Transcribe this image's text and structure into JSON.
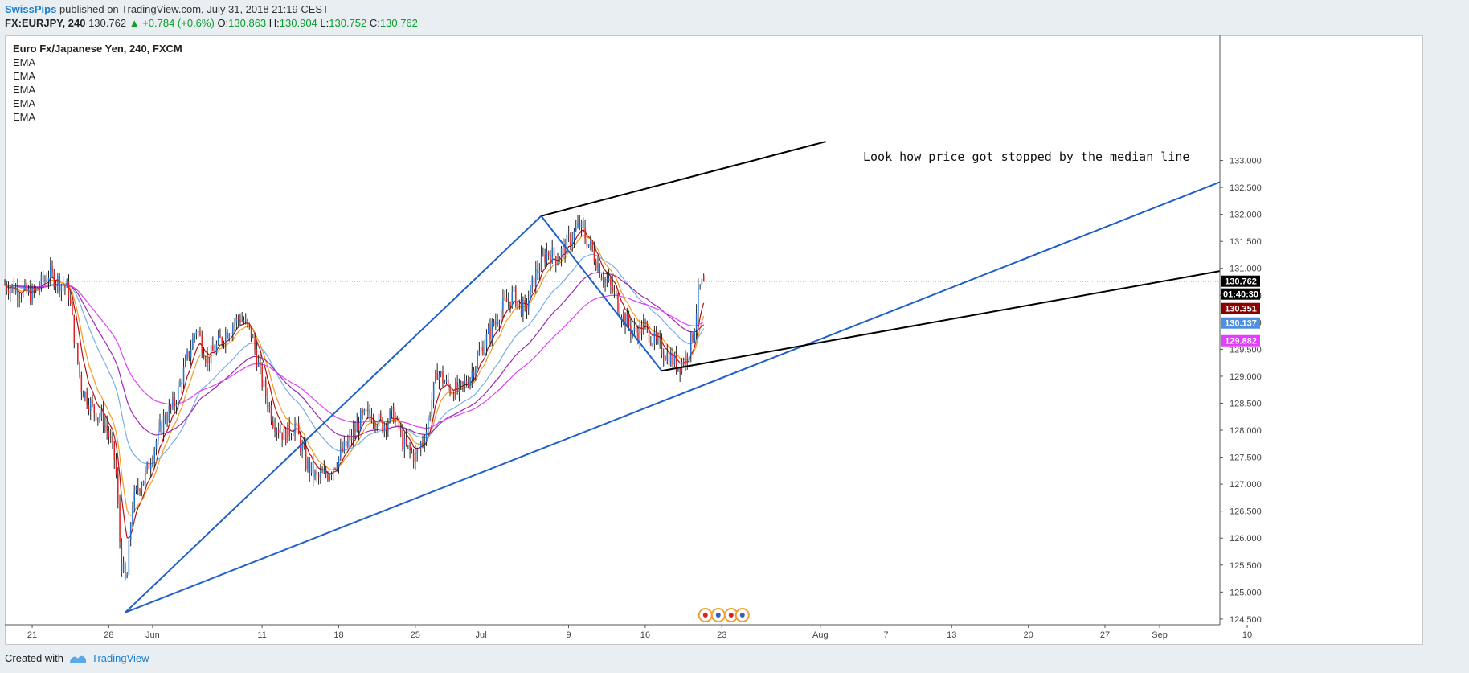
{
  "header": {
    "author": "SwissPips",
    "published": "published on TradingView.com, July 31, 2018 21:19 CEST",
    "symbol": "FX:EURJPY, 240",
    "last": "130.762",
    "change": "+0.784 (+0.6%)",
    "o_label": "O:",
    "o_value": "130.863",
    "h_label": "H:",
    "h_value": "130.904",
    "l_label": "L:",
    "l_value": "130.752",
    "c_label": "C:",
    "c_value": "130.762"
  },
  "legend": {
    "title": "Euro Fx/Japanese Yen, 240, FXCM",
    "indicators": [
      "EMA",
      "EMA",
      "EMA",
      "EMA",
      "EMA"
    ]
  },
  "annotation": "Look how price got stopped by the median line",
  "footer": {
    "created_with": "Created with",
    "brand": "TradingView"
  },
  "colors": {
    "up": "#1e6fd0",
    "down": "#e02020",
    "ema_red": "#b0121b",
    "ema_orange": "#f59a23",
    "ema_lightblue": "#7aaee8",
    "ema_purple": "#9c27b0",
    "ema_magenta": "#e040fb",
    "pitchfork_median": "#1f5fc9",
    "pitchfork_tines": "#000000"
  },
  "chart_data": {
    "type": "candlestick",
    "symbol": "EURJPY",
    "timeframe": "240",
    "ylim": [
      124.2,
      133.5
    ],
    "y_ticks": [
      "133.000",
      "132.500",
      "132.000",
      "131.500",
      "131.000",
      "130.500",
      "130.000",
      "129.500",
      "129.000",
      "128.500",
      "128.000",
      "127.500",
      "127.000",
      "126.500",
      "126.000",
      "125.500",
      "125.000",
      "124.500"
    ],
    "x_ticks": [
      "21",
      "28",
      "Jun",
      "11",
      "18",
      "25",
      "Jul",
      "9",
      "16",
      "23",
      "Aug",
      "7",
      "13",
      "20",
      "27",
      "Sep",
      "10"
    ],
    "x_tick_days": [
      0,
      7,
      11,
      21,
      28,
      35,
      41,
      49,
      56,
      63,
      72,
      78,
      84,
      91,
      98,
      103,
      111
    ],
    "x_range_days": [
      -2.5,
      108.5
    ],
    "last_price": 130.762,
    "price_tags": [
      {
        "value": "130.762",
        "color": "#000000"
      },
      {
        "value": "01:40:30",
        "color": "#000000"
      },
      {
        "value": "130.351",
        "color": "#8b0000"
      },
      {
        "value": "130.137",
        "color": "#4a8fe0"
      },
      {
        "value": "129.882",
        "color": "#e040fb"
      }
    ],
    "closes": [
      {
        "d": -2.5,
        "c": 130.7
      },
      {
        "d": 0,
        "c": 130.5
      },
      {
        "d": 1.5,
        "c": 130.9
      },
      {
        "d": 2.5,
        "c": 130.75
      },
      {
        "d": 3.3,
        "c": 130.6
      },
      {
        "d": 4,
        "c": 129.5
      },
      {
        "d": 4.5,
        "c": 128.8
      },
      {
        "d": 5.5,
        "c": 128.4
      },
      {
        "d": 6.5,
        "c": 128.2
      },
      {
        "d": 7,
        "c": 127.9
      },
      {
        "d": 7.6,
        "c": 127.4
      },
      {
        "d": 8.1,
        "c": 125.6
      },
      {
        "d": 8.6,
        "c": 125.1
      },
      {
        "d": 9.1,
        "c": 126.6
      },
      {
        "d": 9.8,
        "c": 127.0
      },
      {
        "d": 10.4,
        "c": 127.2
      },
      {
        "d": 11,
        "c": 127.6
      },
      {
        "d": 12,
        "c": 128.2
      },
      {
        "d": 13,
        "c": 128.5
      },
      {
        "d": 14,
        "c": 129.2
      },
      {
        "d": 15,
        "c": 129.9
      },
      {
        "d": 16,
        "c": 129.3
      },
      {
        "d": 17,
        "c": 129.6
      },
      {
        "d": 18,
        "c": 129.9
      },
      {
        "d": 19,
        "c": 130.1
      },
      {
        "d": 20,
        "c": 129.8
      },
      {
        "d": 21,
        "c": 128.9
      },
      {
        "d": 22,
        "c": 128.2
      },
      {
        "d": 23,
        "c": 127.9
      },
      {
        "d": 24,
        "c": 128.1
      },
      {
        "d": 25,
        "c": 127.4
      },
      {
        "d": 26,
        "c": 127.1
      },
      {
        "d": 27,
        "c": 127.2
      },
      {
        "d": 28,
        "c": 127.5
      },
      {
        "d": 29,
        "c": 127.8
      },
      {
        "d": 30,
        "c": 128.2
      },
      {
        "d": 31,
        "c": 128.3
      },
      {
        "d": 32,
        "c": 128.1
      },
      {
        "d": 33,
        "c": 128.3
      },
      {
        "d": 34,
        "c": 127.7
      },
      {
        "d": 35,
        "c": 127.5
      },
      {
        "d": 36,
        "c": 128.0
      },
      {
        "d": 37,
        "c": 129.1
      },
      {
        "d": 38,
        "c": 128.8
      },
      {
        "d": 39,
        "c": 128.7
      },
      {
        "d": 40,
        "c": 129.0
      },
      {
        "d": 41,
        "c": 129.5
      },
      {
        "d": 42,
        "c": 129.9
      },
      {
        "d": 43,
        "c": 130.3
      },
      {
        "d": 44,
        "c": 130.5
      },
      {
        "d": 45,
        "c": 130.2
      },
      {
        "d": 46,
        "c": 130.9
      },
      {
        "d": 47,
        "c": 131.3
      },
      {
        "d": 48,
        "c": 131.2
      },
      {
        "d": 49,
        "c": 131.5
      },
      {
        "d": 50,
        "c": 131.8
      },
      {
        "d": 51,
        "c": 131.4
      },
      {
        "d": 52,
        "c": 130.9
      },
      {
        "d": 53,
        "c": 130.6
      },
      {
        "d": 54,
        "c": 130.1
      },
      {
        "d": 55,
        "c": 129.8
      },
      {
        "d": 56,
        "c": 129.9
      },
      {
        "d": 57,
        "c": 129.6
      },
      {
        "d": 58,
        "c": 129.4
      },
      {
        "d": 59,
        "c": 129.2
      },
      {
        "d": 59.8,
        "c": 129.35
      },
      {
        "d": 60.4,
        "c": 129.8
      },
      {
        "d": 60.9,
        "c": 130.6
      },
      {
        "d": 61.4,
        "c": 130.762
      }
    ],
    "pitchfork": {
      "points": [
        {
          "d": 8.5,
          "price": 124.62
        },
        {
          "d": 46.5,
          "price": 131.97
        },
        {
          "d": 57.5,
          "price": 129.1
        }
      ],
      "median_end": {
        "d": 108.5,
        "price": 132.6
      },
      "upper_tine_end": {
        "d": 72.5,
        "price": 133.35
      },
      "lower_tine_end": {
        "d": 108.5,
        "price": 130.95
      }
    }
  }
}
